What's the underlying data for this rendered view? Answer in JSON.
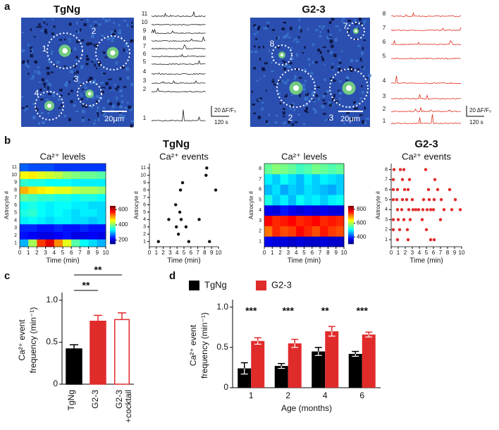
{
  "panel_labels": [
    "a",
    "b",
    "c",
    "d"
  ],
  "panel_a": [
    {
      "title": "TgNg",
      "cell_labels": [
        "1",
        "2",
        "3",
        "4"
      ],
      "trace_labels": [
        "11",
        "10",
        "9",
        "8",
        "7",
        "6",
        "5",
        "4",
        "3",
        "2",
        "1"
      ],
      "scale_bar": "20μm",
      "dff_scale": "20 ΔF/F₀",
      "time_scale": "120 s"
    },
    {
      "title": "G2-3",
      "cell_labels": [
        "7",
        "8",
        "2",
        "3"
      ],
      "trace_labels": [
        "8",
        "7",
        "6",
        "5",
        "4",
        "3",
        "2",
        "1"
      ],
      "scale_bar": "20μm",
      "dff_scale": "20 ΔF/F₀",
      "time_scale": "120 s"
    }
  ],
  "panel_b_titles": [
    "TgNg",
    "G2-3"
  ],
  "chart_data": [
    {
      "type": "heatmap",
      "title": "Ca²⁺ levels",
      "xlabel": "Time (min)",
      "ylabel": "Astrocyte #",
      "colormap": "jet",
      "rows": [
        "1",
        "2",
        "3",
        "4",
        "5",
        "6",
        "7",
        "8",
        "9",
        "10",
        "11"
      ],
      "xlim": [
        0,
        10
      ],
      "xticks": [
        0,
        1,
        2,
        3,
        4,
        5,
        6,
        7,
        8,
        9,
        10
      ],
      "clim": [
        150,
        650
      ],
      "cticks": [
        200,
        400,
        600
      ],
      "values": [
        [
          300,
          420,
          560,
          600,
          520,
          450,
          380,
          340,
          320,
          300
        ],
        [
          220,
          210,
          200,
          200,
          210,
          220,
          200,
          200,
          210,
          200
        ],
        [
          230,
          230,
          220,
          220,
          230,
          220,
          220,
          230,
          220,
          220
        ],
        [
          330,
          340,
          330,
          320,
          330,
          330,
          320,
          320,
          310,
          320
        ],
        [
          350,
          360,
          340,
          330,
          340,
          330,
          320,
          330,
          330,
          320
        ],
        [
          340,
          350,
          340,
          330,
          340,
          340,
          330,
          330,
          320,
          320
        ],
        [
          380,
          370,
          360,
          360,
          350,
          350,
          340,
          350,
          350,
          340
        ],
        [
          500,
          480,
          470,
          460,
          450,
          450,
          430,
          420,
          420,
          410
        ],
        [
          360,
          350,
          350,
          340,
          340,
          340,
          330,
          330,
          330,
          330
        ],
        [
          460,
          470,
          450,
          440,
          430,
          410,
          400,
          390,
          390,
          380
        ],
        [
          260,
          250,
          250,
          250,
          240,
          240,
          240,
          240,
          240,
          240
        ]
      ]
    },
    {
      "type": "scatter",
      "title": "Ca²⁺ events",
      "xlabel": "Time (min)",
      "ylabel": "Astrocyte #",
      "color": "#111111",
      "xlim": [
        0,
        10
      ],
      "xticks": [
        0,
        1,
        2,
        3,
        4,
        5,
        6,
        7,
        8,
        9,
        10
      ],
      "ylim": [
        0.3,
        11.6
      ],
      "yticks": [
        1,
        2,
        3,
        4,
        5,
        6,
        7,
        8,
        9,
        10,
        11
      ],
      "x": [
        1.3,
        2.8,
        3.8,
        3.9,
        4.2,
        4.4,
        4.5,
        4.6,
        4.8,
        5.3,
        5.7,
        7.2,
        8.2,
        8.3,
        8.7,
        9.6
      ],
      "y": [
        1,
        4,
        6,
        3,
        2,
        5,
        8,
        4,
        9,
        3,
        1,
        4,
        10,
        11,
        1,
        8
      ]
    },
    {
      "type": "heatmap",
      "title": "Ca²⁺ levels",
      "xlabel": "Time (min)",
      "ylabel": "Astrocyte #",
      "colormap": "jet",
      "rows": [
        "1",
        "2",
        "3",
        "4",
        "5",
        "6",
        "7",
        "8"
      ],
      "xlim": [
        0,
        10
      ],
      "xticks": [
        0,
        1,
        2,
        3,
        4,
        5,
        6,
        7,
        8,
        9,
        10
      ],
      "clim": [
        300,
        850
      ],
      "cticks": [
        400,
        600,
        800
      ],
      "values": [
        [
          360,
          350,
          350,
          340,
          350,
          340,
          340,
          350,
          340,
          340
        ],
        [
          720,
          760,
          740,
          750,
          780,
          760,
          740,
          770,
          750,
          740
        ],
        [
          780,
          760,
          770,
          780,
          760,
          770,
          780,
          760,
          770,
          760
        ],
        [
          360,
          350,
          380,
          360,
          350,
          360,
          350,
          360,
          350,
          350
        ],
        [
          520,
          480,
          500,
          470,
          510,
          490,
          500,
          480,
          500,
          510
        ],
        [
          470,
          490,
          460,
          480,
          470,
          490,
          480,
          470,
          460,
          480
        ],
        [
          500,
          480,
          510,
          490,
          470,
          500,
          480,
          500,
          490,
          480
        ],
        [
          560,
          580,
          570,
          560,
          540,
          550,
          570,
          560,
          550,
          560
        ]
      ]
    },
    {
      "type": "scatter",
      "title": "Ca²⁺ events",
      "xlabel": "Time (min)",
      "ylabel": "Astrocyte #",
      "color": "#e02b2b",
      "xlim": [
        0,
        10
      ],
      "xticks": [
        0,
        1,
        2,
        3,
        4,
        5,
        6,
        7,
        8,
        9,
        10
      ],
      "ylim": [
        0.3,
        8.6
      ],
      "yticks": [
        1,
        2,
        3,
        4,
        5,
        6,
        7,
        8
      ],
      "x": [
        0.4,
        1.3,
        1.8,
        4.9,
        0.3,
        1.6,
        2.6,
        6.2,
        0.3,
        0.9,
        1.9,
        2.4,
        5.3,
        6.6,
        8.3,
        0.3,
        0.8,
        1.6,
        2.2,
        3.0,
        4.6,
        5.4,
        6.1,
        7.1,
        9.1,
        0.9,
        1.5,
        2.5,
        3.1,
        3.5,
        3.9,
        4.5,
        5.1,
        5.6,
        6.0,
        7.5,
        8.6,
        9.8,
        0.3,
        1.0,
        1.8,
        2.7,
        4.4,
        7.0,
        0.3,
        1.2,
        2.3,
        5.0,
        0.9,
        2.4,
        5.6,
        6.1
      ],
      "y": [
        8,
        8,
        8,
        8,
        7,
        7,
        7,
        7,
        6,
        6,
        6,
        6,
        6,
        6,
        6,
        5,
        5,
        5,
        5,
        5,
        5,
        5,
        5,
        5,
        5,
        4,
        4,
        4,
        4,
        4,
        4,
        4,
        4,
        4,
        4,
        4,
        4,
        4,
        3,
        3,
        3,
        3,
        3,
        3,
        2,
        2,
        2,
        2,
        1,
        1,
        1,
        1
      ]
    },
    {
      "type": "bar",
      "ylabel": [
        "Ca²⁺ event",
        "frequency (min⁻¹)"
      ],
      "categories": [
        "TgNg",
        "G2-3",
        "G2-3\n+cocktail"
      ],
      "values": [
        0.42,
        0.75,
        0.77
      ],
      "errors": [
        0.05,
        0.07,
        0.08
      ],
      "colors": [
        "#000000",
        "#e02b2b",
        "#e02b2b"
      ],
      "bar_styles": [
        "solid",
        "solid",
        "outline"
      ],
      "ylim": [
        0,
        1.05
      ],
      "yticks": [
        0,
        0.5,
        {
          "value": 1,
          "label": "1.0"
        }
      ],
      "significance": [
        {
          "label": "**",
          "between": [
            0,
            1
          ]
        },
        {
          "label": "**",
          "between": [
            0,
            2
          ]
        }
      ]
    },
    {
      "type": "grouped_bar",
      "xlabel": "Age (months)",
      "ylabel": [
        "Ca²⁺ event",
        "frequency (min⁻¹)"
      ],
      "categories": [
        "1",
        "2",
        "4",
        "6"
      ],
      "legend": "top",
      "series": [
        {
          "name": "TgNg",
          "color": "#000000",
          "values": [
            0.24,
            0.27,
            0.45,
            0.42
          ],
          "errors": [
            0.07,
            0.03,
            0.05,
            0.03
          ]
        },
        {
          "name": "G2-3",
          "color": "#e02b2b",
          "values": [
            0.58,
            0.55,
            0.7,
            0.66
          ],
          "errors": [
            0.04,
            0.05,
            0.06,
            0.03
          ]
        }
      ],
      "ylim": [
        0,
        1.05
      ],
      "yticks": [
        0,
        0.5,
        {
          "value": 1,
          "label": "1.0"
        }
      ],
      "annotations": [
        "***",
        "***",
        "**",
        "***"
      ]
    }
  ]
}
